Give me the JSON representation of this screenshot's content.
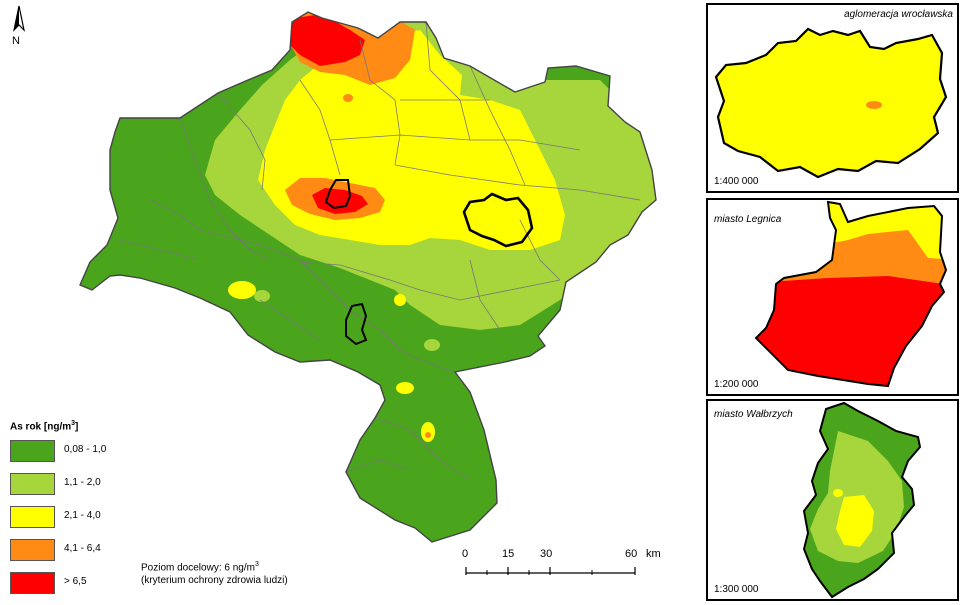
{
  "north": {
    "label": "N"
  },
  "legend": {
    "title_main": "As rok [ng/m",
    "title_sup": "3",
    "title_end": "]",
    "classes": [
      {
        "label": "0,08 - 1,0",
        "color": "#4aa51c"
      },
      {
        "label": "1,1 - 2,0",
        "color": "#a6d63c"
      },
      {
        "label": "2,1 - 4,0",
        "color": "#ffff00"
      },
      {
        "label": "4,1 - 6,4",
        "color": "#ff8a14"
      },
      {
        "label": "> 6,5",
        "color": "#ff0000"
      }
    ]
  },
  "target_note": {
    "line1_main": "Poziom docelowy: 6 ng/m",
    "line1_sup": "3",
    "line2": "(kryterium ochrony zdrowia ludzi)"
  },
  "scale_bar": {
    "ticks": [
      "0",
      "15",
      "30",
      "60"
    ],
    "unit": "km"
  },
  "insets": [
    {
      "title": "aglomeracja wrocławska",
      "scale": "1:400 000"
    },
    {
      "title": "miasto Legnica",
      "scale": "1:200 000"
    },
    {
      "title": "miasto Wałbrzych",
      "scale": "1:300 000"
    }
  ]
}
